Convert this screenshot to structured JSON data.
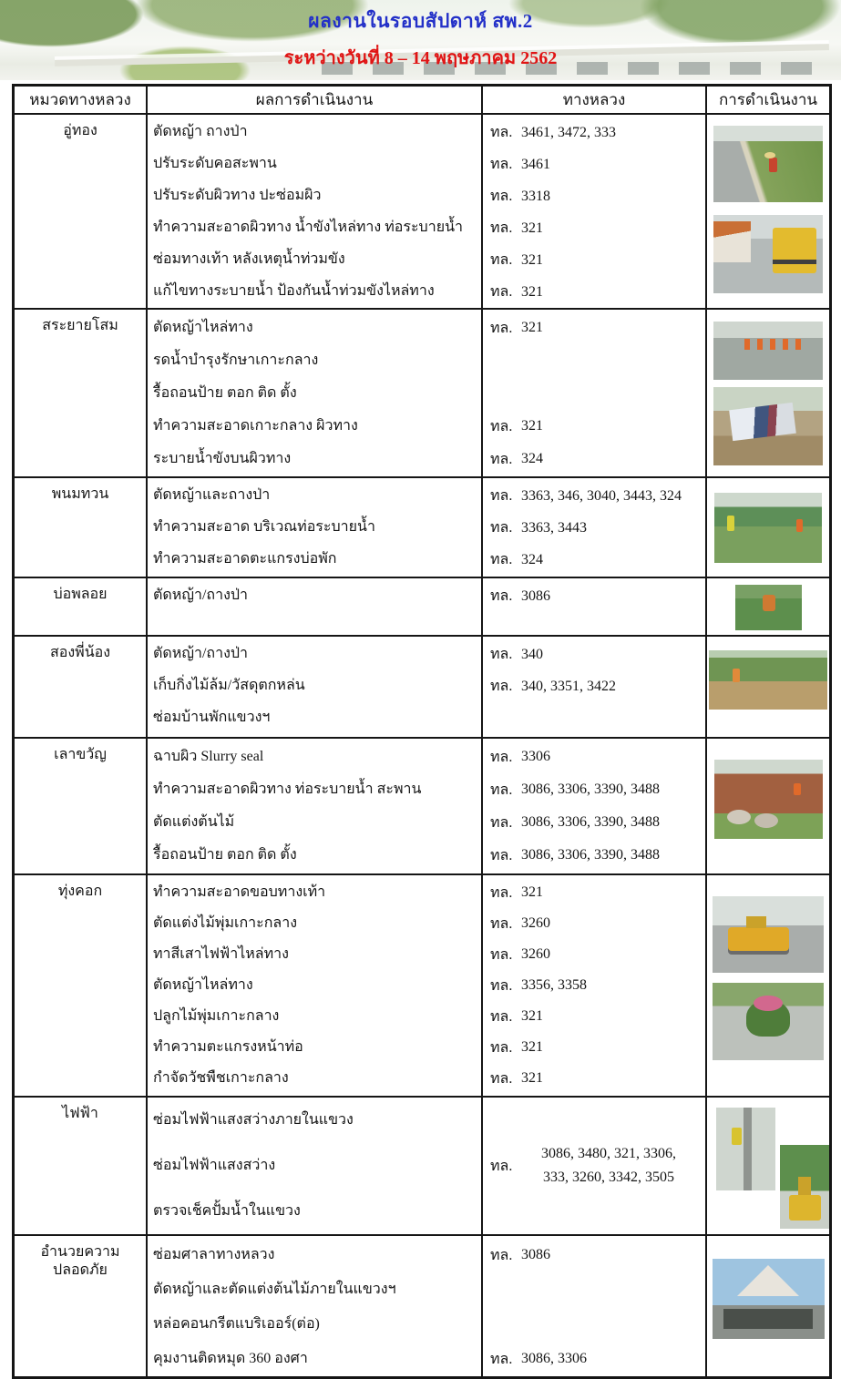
{
  "header": {
    "title": "ผลงานในรอบสัปดาห์  สพ.2",
    "subtitle": "ระหว่างวันที่ 8 – 14 พฤษภาคม 2562",
    "title_color": "#2330c8",
    "subtitle_color": "#e01414"
  },
  "table": {
    "columns": [
      "หมวดทางหลวง",
      "ผลการดำเนินงาน",
      "ทางหลวง",
      "การดำเนินงาน"
    ],
    "highway_prefix": "ทล.",
    "sections": [
      {
        "district": "อู่ทอง",
        "rows": [
          {
            "task": "ตัดหญ้า ถางป่า",
            "highway": "3461, 3472, 333"
          },
          {
            "task": "ปรับระดับคอสะพาน",
            "highway": "3461"
          },
          {
            "task": "ปรับระดับผิวทาง ปะซ่อมผิว",
            "highway": "3318"
          },
          {
            "task": "ทำความสะอาดผิวทาง น้ำขังไหล่ทาง ท่อระบายน้ำ",
            "highway": "321"
          },
          {
            "task": "ซ่อมทางเท้า หลังเหตุน้ำท่วมขัง",
            "highway": "321"
          },
          {
            "task": "แก้ไขทางระบายน้ำ ป้องกันน้ำท่วมขังไหล่ทาง",
            "highway": "321"
          }
        ],
        "photos": [
          {
            "name": "roadside-grass-cutting-photo"
          },
          {
            "name": "sweeper-truck-flooded-road-photo"
          }
        ]
      },
      {
        "district": "สระยายโสม",
        "rows": [
          {
            "task": "ตัดหญ้าไหล่ทาง",
            "highway": "321"
          },
          {
            "task": "รดน้ำบำรุงรักษาเกาะกลาง",
            "highway": ""
          },
          {
            "task": "รื้อถอนป้าย ตอก ติด ตั้ง",
            "highway": ""
          },
          {
            "task": "ทำความสะอาดเกาะกลาง ผิวทาง",
            "highway": "321"
          },
          {
            "task": "ระบายน้ำขังบนผิวทาง",
            "highway": "324"
          }
        ],
        "photos": [
          {
            "name": "workers-wet-road-photo"
          },
          {
            "name": "sign-banner-removal-photo"
          }
        ]
      },
      {
        "district": "พนมทวน",
        "rows": [
          {
            "task": "ตัดหญ้าและถางป่า",
            "highway": "3363, 346, 3040, 3443, 324"
          },
          {
            "task": "ทำความสะอาด บริเวณท่อระบายน้ำ",
            "highway": "3363, 3443"
          },
          {
            "task": "ทำความสะอาดตะแกรงบ่อพัก",
            "highway": "324"
          }
        ],
        "photos": [
          {
            "name": "field-grass-cutting-photo"
          }
        ]
      },
      {
        "district": "บ่อพลอย",
        "rows": [
          {
            "task": "ตัดหญ้า/ถางป่า",
            "highway": "3086"
          }
        ],
        "photos": [
          {
            "name": "grass-cutting-small-photo"
          }
        ]
      },
      {
        "district": "สองพี่น้อง",
        "rows": [
          {
            "task": "ตัดหญ้า/ถางป่า",
            "highway": "340"
          },
          {
            "task": "เก็บกิ่งไม้ล้ม/วัสดุตกหล่น",
            "highway": "340, 3351, 3422"
          },
          {
            "task": "ซ่อมบ้านพักแขวงฯ",
            "highway": ""
          }
        ],
        "photos": [
          {
            "name": "tree-grove-cleanup-photo"
          }
        ]
      },
      {
        "district": "เลาขวัญ",
        "rows": [
          {
            "task": "ฉาบผิว Slurry seal",
            "highway": "3306"
          },
          {
            "task": "ทำความสะอาดผิวทาง ท่อระบายน้ำ สะพาน",
            "highway": "3086, 3306, 3390, 3488"
          },
          {
            "task": "ตัดแต่งต้นไม้",
            "highway": "3086, 3306, 3390, 3488"
          },
          {
            "task": "รื้อถอนป้าย ตอก ติด ตั้ง",
            "highway": "3086, 3306, 3390, 3488"
          }
        ],
        "photos": [
          {
            "name": "culvert-clearing-photo"
          }
        ]
      },
      {
        "district": "ทุ่งคอก",
        "rows": [
          {
            "task": "ทำความสะอาดขอบทางเท้า",
            "highway": "321"
          },
          {
            "task": "ตัดแต่งไม้พุ่มเกาะกลาง",
            "highway": "3260"
          },
          {
            "task": "ทาสีเสาไฟฟ้าไหล่ทาง",
            "highway": "3260"
          },
          {
            "task": "ตัดหญ้าไหล่ทาง",
            "highway": "3356, 3358"
          },
          {
            "task": "ปลูกไม้พุ่มเกาะกลาง",
            "highway": "321"
          },
          {
            "task": "ทำความตะแกรงหน้าท่อ",
            "highway": "321"
          },
          {
            "task": "กำจัดวัชพืชเกาะกลาง",
            "highway": "321"
          }
        ],
        "photos": [
          {
            "name": "grader-machine-road-photo"
          },
          {
            "name": "median-flower-planting-photo"
          }
        ]
      },
      {
        "district": "ไฟฟ้า",
        "rows": [
          {
            "task": "ซ่อมไฟฟ้าแสงสว่างภายในแขวง",
            "highway": ""
          },
          {
            "task": "ซ่อมไฟฟ้าแสงสว่าง",
            "highway": ""
          },
          {
            "task": "ตรวจเช็คปั้มน้ำในแขวง",
            "highway": ""
          }
        ],
        "highway_combined": {
          "line1": "3086, 3480, 321, 3306,",
          "line2": "333, 3260, 3342, 3505"
        },
        "photos": [
          {
            "name": "electric-pole-repair-photo"
          },
          {
            "name": "bucket-truck-photo"
          }
        ]
      },
      {
        "district": "อำนวยความปลอดภัย",
        "rows": [
          {
            "task": "ซ่อมศาลาทางหลวง",
            "highway": "3086"
          },
          {
            "task": "ตัดหญ้าและตัดแต่งต้นไม้ภายในแขวงฯ",
            "highway": ""
          },
          {
            "task": "หล่อคอนกรีตแบริเออร์(ต่อ)",
            "highway": ""
          },
          {
            "task": "คุมงานติดหมุด 360 องศา",
            "highway": "3086, 3306"
          }
        ],
        "photos": [
          {
            "name": "highway-pavilion-repair-photo"
          }
        ]
      }
    ]
  }
}
